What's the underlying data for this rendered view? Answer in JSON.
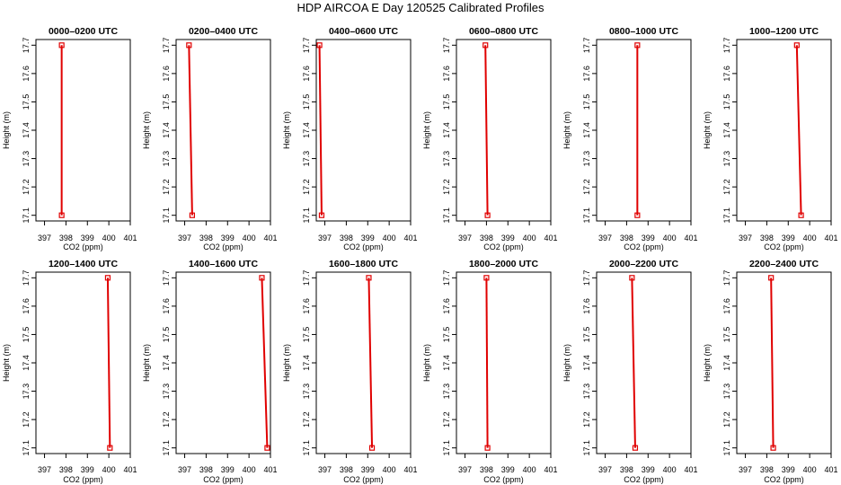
{
  "page_title": "HDP AIRCOA E  Day 120525  Calibrated Profiles",
  "colors": {
    "series": "#e00000",
    "frame": "#000000"
  },
  "chart_data": [
    {
      "type": "line",
      "title": "0000–0200 UTC",
      "xlabel": "CO2 (ppm)",
      "ylabel": "Height (m)",
      "xlim": [
        396.6,
        401
      ],
      "ylim": [
        17.08,
        17.72
      ],
      "xticks": [
        "397",
        "398",
        "399",
        "400",
        "401"
      ],
      "yticks": [
        "17.1",
        "17.2",
        "17.3",
        "17.4",
        "17.5",
        "17.6",
        "17.7"
      ],
      "points": [
        {
          "x": 397.8,
          "y": 17.7
        },
        {
          "x": 397.8,
          "y": 17.1
        }
      ]
    },
    {
      "type": "line",
      "title": "0200–0400 UTC",
      "xlabel": "CO2 (ppm)",
      "ylabel": "Height (m)",
      "xlim": [
        396.6,
        401
      ],
      "ylim": [
        17.08,
        17.72
      ],
      "xticks": [
        "397",
        "398",
        "399",
        "400",
        "401"
      ],
      "yticks": [
        "17.1",
        "17.2",
        "17.3",
        "17.4",
        "17.5",
        "17.6",
        "17.7"
      ],
      "points": [
        {
          "x": 397.2,
          "y": 17.7
        },
        {
          "x": 397.35,
          "y": 17.1
        }
      ]
    },
    {
      "type": "line",
      "title": "0400–0600 UTC",
      "xlabel": "CO2 (ppm)",
      "ylabel": "Height (m)",
      "xlim": [
        396.6,
        401
      ],
      "ylim": [
        17.08,
        17.72
      ],
      "xticks": [
        "397",
        "398",
        "399",
        "400",
        "401"
      ],
      "yticks": [
        "17.1",
        "17.2",
        "17.3",
        "17.4",
        "17.5",
        "17.6",
        "17.7"
      ],
      "points": [
        {
          "x": 396.75,
          "y": 17.7
        },
        {
          "x": 396.85,
          "y": 17.1
        }
      ]
    },
    {
      "type": "line",
      "title": "0600–0800 UTC",
      "xlabel": "CO2 (ppm)",
      "ylabel": "Height (m)",
      "xlim": [
        396.6,
        401
      ],
      "ylim": [
        17.08,
        17.72
      ],
      "xticks": [
        "397",
        "398",
        "399",
        "400",
        "401"
      ],
      "yticks": [
        "17.1",
        "17.2",
        "17.3",
        "17.4",
        "17.5",
        "17.6",
        "17.7"
      ],
      "points": [
        {
          "x": 397.95,
          "y": 17.7
        },
        {
          "x": 398.05,
          "y": 17.1
        }
      ]
    },
    {
      "type": "line",
      "title": "0800–1000 UTC",
      "xlabel": "CO2 (ppm)",
      "ylabel": "Height (m)",
      "xlim": [
        396.6,
        401
      ],
      "ylim": [
        17.08,
        17.72
      ],
      "xticks": [
        "397",
        "398",
        "399",
        "400",
        "401"
      ],
      "yticks": [
        "17.1",
        "17.2",
        "17.3",
        "17.4",
        "17.5",
        "17.6",
        "17.7"
      ],
      "points": [
        {
          "x": 398.5,
          "y": 17.7
        },
        {
          "x": 398.5,
          "y": 17.1
        }
      ]
    },
    {
      "type": "line",
      "title": "1000–1200 UTC",
      "xlabel": "CO2 (ppm)",
      "ylabel": "Height (m)",
      "xlim": [
        396.6,
        401
      ],
      "ylim": [
        17.08,
        17.72
      ],
      "xticks": [
        "397",
        "398",
        "399",
        "400",
        "401"
      ],
      "yticks": [
        "17.1",
        "17.2",
        "17.3",
        "17.4",
        "17.5",
        "17.6",
        "17.7"
      ],
      "points": [
        {
          "x": 399.4,
          "y": 17.7
        },
        {
          "x": 399.6,
          "y": 17.1
        }
      ]
    },
    {
      "type": "line",
      "title": "1200–1400 UTC",
      "xlabel": "CO2 (ppm)",
      "ylabel": "Height (m)",
      "xlim": [
        396.6,
        401
      ],
      "ylim": [
        17.08,
        17.72
      ],
      "xticks": [
        "397",
        "398",
        "399",
        "400",
        "401"
      ],
      "yticks": [
        "17.1",
        "17.2",
        "17.3",
        "17.4",
        "17.5",
        "17.6",
        "17.7"
      ],
      "points": [
        {
          "x": 399.95,
          "y": 17.7
        },
        {
          "x": 400.05,
          "y": 17.1
        }
      ]
    },
    {
      "type": "line",
      "title": "1400–1600 UTC",
      "xlabel": "CO2 (ppm)",
      "ylabel": "Height (m)",
      "xlim": [
        396.6,
        401
      ],
      "ylim": [
        17.08,
        17.72
      ],
      "xticks": [
        "397",
        "398",
        "399",
        "400",
        "401"
      ],
      "yticks": [
        "17.1",
        "17.2",
        "17.3",
        "17.4",
        "17.5",
        "17.6",
        "17.7"
      ],
      "points": [
        {
          "x": 400.6,
          "y": 17.7
        },
        {
          "x": 400.85,
          "y": 17.1
        }
      ]
    },
    {
      "type": "line",
      "title": "1600–1800 UTC",
      "xlabel": "CO2 (ppm)",
      "ylabel": "Height (m)",
      "xlim": [
        396.6,
        401
      ],
      "ylim": [
        17.08,
        17.72
      ],
      "xticks": [
        "397",
        "398",
        "399",
        "400",
        "401"
      ],
      "yticks": [
        "17.1",
        "17.2",
        "17.3",
        "17.4",
        "17.5",
        "17.6",
        "17.7"
      ],
      "points": [
        {
          "x": 399.05,
          "y": 17.7
        },
        {
          "x": 399.2,
          "y": 17.1
        }
      ]
    },
    {
      "type": "line",
      "title": "1800–2000 UTC",
      "xlabel": "CO2 (ppm)",
      "ylabel": "Height (m)",
      "xlim": [
        396.6,
        401
      ],
      "ylim": [
        17.08,
        17.72
      ],
      "xticks": [
        "397",
        "398",
        "399",
        "400",
        "401"
      ],
      "yticks": [
        "17.1",
        "17.2",
        "17.3",
        "17.4",
        "17.5",
        "17.6",
        "17.7"
      ],
      "points": [
        {
          "x": 398.0,
          "y": 17.7
        },
        {
          "x": 398.05,
          "y": 17.1
        }
      ]
    },
    {
      "type": "line",
      "title": "2000–2200 UTC",
      "xlabel": "CO2 (ppm)",
      "ylabel": "Height (m)",
      "xlim": [
        396.6,
        401
      ],
      "ylim": [
        17.08,
        17.72
      ],
      "xticks": [
        "397",
        "398",
        "399",
        "400",
        "401"
      ],
      "yticks": [
        "17.1",
        "17.2",
        "17.3",
        "17.4",
        "17.5",
        "17.6",
        "17.7"
      ],
      "points": [
        {
          "x": 398.25,
          "y": 17.7
        },
        {
          "x": 398.4,
          "y": 17.1
        }
      ]
    },
    {
      "type": "line",
      "title": "2200–2400 UTC",
      "xlabel": "CO2 (ppm)",
      "ylabel": "Height (m)",
      "xlim": [
        396.6,
        401
      ],
      "ylim": [
        17.08,
        17.72
      ],
      "xticks": [
        "397",
        "398",
        "399",
        "400",
        "401"
      ],
      "yticks": [
        "17.1",
        "17.2",
        "17.3",
        "17.4",
        "17.5",
        "17.6",
        "17.7"
      ],
      "points": [
        {
          "x": 398.2,
          "y": 17.7
        },
        {
          "x": 398.3,
          "y": 17.1
        }
      ]
    }
  ]
}
